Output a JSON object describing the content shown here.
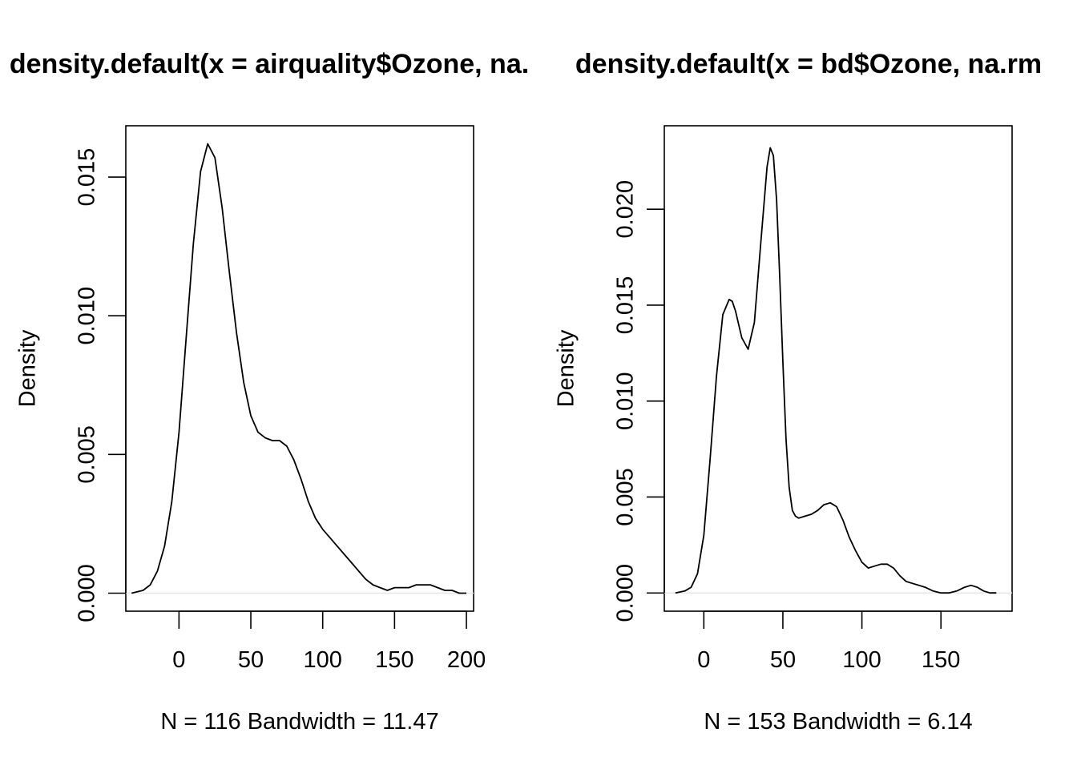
{
  "chart_data": [
    {
      "type": "line",
      "title": "density.default(x = airquality$Ozone, na.",
      "xlabel": "N = 116   Bandwidth = 11.47",
      "ylabel": "Density",
      "xlim": [
        -37,
        205
      ],
      "ylim": [
        -0.00065,
        0.01685
      ],
      "xticks": [
        0,
        50,
        100,
        150,
        200
      ],
      "xtick_labels": [
        "0",
        "50",
        "100",
        "150",
        "200"
      ],
      "yticks": [
        0,
        0.005,
        0.01,
        0.015
      ],
      "ytick_labels": [
        "0.000",
        "0.005",
        "0.010",
        "0.015"
      ],
      "grid": false,
      "series": [
        {
          "x": [
            -33,
            -25,
            -20,
            -15,
            -10,
            -5,
            0,
            5,
            10,
            15,
            20,
            25,
            30,
            35,
            40,
            45,
            50,
            55,
            60,
            65,
            70,
            75,
            80,
            85,
            90,
            95,
            100,
            105,
            110,
            115,
            120,
            125,
            130,
            135,
            140,
            145,
            150,
            155,
            160,
            165,
            170,
            175,
            180,
            185,
            190,
            195,
            200
          ],
          "y": [
            0.0,
            0.0001,
            0.0003,
            0.0008,
            0.0017,
            0.0033,
            0.0058,
            0.0092,
            0.0126,
            0.0152,
            0.0162,
            0.0157,
            0.0139,
            0.0116,
            0.0094,
            0.0076,
            0.0064,
            0.0058,
            0.0056,
            0.0055,
            0.0055,
            0.0053,
            0.0048,
            0.0041,
            0.0033,
            0.0027,
            0.0023,
            0.002,
            0.0017,
            0.0014,
            0.0011,
            0.0008,
            0.0005,
            0.0003,
            0.0002,
            0.0001,
            0.0002,
            0.0002,
            0.0002,
            0.0003,
            0.0003,
            0.0003,
            0.0002,
            0.0001,
            0.0001,
            0.0,
            0.0
          ]
        }
      ]
    },
    {
      "type": "line",
      "title": "density.default(x = bd$Ozone, na.rm",
      "xlabel": "N = 153   Bandwidth = 6.14",
      "ylabel": "Density",
      "xlim": [
        -25,
        195
      ],
      "ylim": [
        -0.00095,
        0.02435
      ],
      "xticks": [
        0,
        50,
        100,
        150
      ],
      "xtick_labels": [
        "0",
        "50",
        "100",
        "150"
      ],
      "yticks": [
        0,
        0.005,
        0.01,
        0.015,
        0.02
      ],
      "ytick_labels": [
        "0.000",
        "0.005",
        "0.010",
        "0.015",
        "0.020"
      ],
      "grid": false,
      "series": [
        {
          "x": [
            -18,
            -12,
            -8,
            -4,
            0,
            4,
            8,
            12,
            16,
            18,
            20,
            24,
            28,
            32,
            36,
            40,
            42,
            44,
            46,
            48,
            50,
            52,
            54,
            56,
            58,
            60,
            64,
            68,
            72,
            76,
            80,
            84,
            88,
            92,
            96,
            100,
            104,
            108,
            112,
            116,
            120,
            124,
            128,
            132,
            136,
            140,
            145,
            150,
            155,
            160,
            165,
            169,
            173,
            177,
            181,
            185
          ],
          "y": [
            0.0,
            0.0001,
            0.0003,
            0.001,
            0.003,
            0.007,
            0.0113,
            0.0145,
            0.0153,
            0.0152,
            0.0147,
            0.0133,
            0.0127,
            0.0141,
            0.0182,
            0.0222,
            0.0232,
            0.0228,
            0.0205,
            0.0165,
            0.012,
            0.008,
            0.0055,
            0.0043,
            0.004,
            0.0039,
            0.004,
            0.0041,
            0.0043,
            0.0046,
            0.0047,
            0.0045,
            0.0038,
            0.0029,
            0.0022,
            0.0016,
            0.0013,
            0.0014,
            0.0015,
            0.0015,
            0.0013,
            0.0009,
            0.0006,
            0.0005,
            0.0004,
            0.0003,
            0.0001,
            0.0,
            0.0,
            0.0001,
            0.0003,
            0.0004,
            0.0003,
            0.0001,
            0.0,
            0.0
          ]
        }
      ]
    }
  ]
}
